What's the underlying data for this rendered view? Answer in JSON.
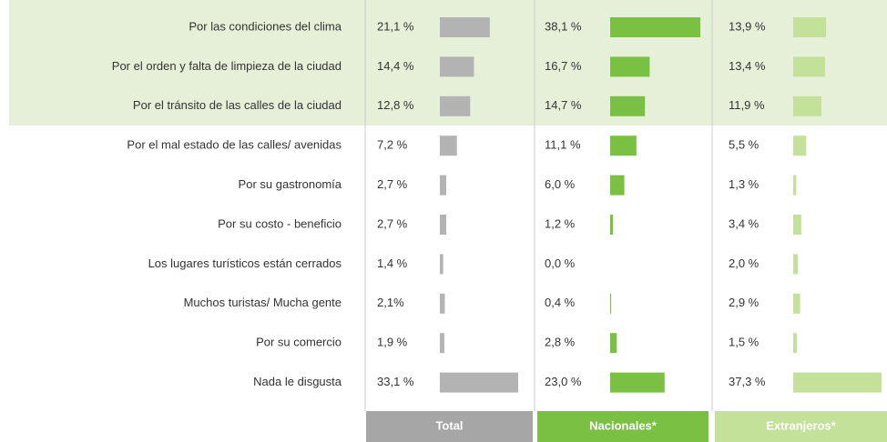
{
  "chart_data": {
    "type": "bar",
    "orientation": "horizontal",
    "categories": [
      "Por las condiciones del clima",
      "Por el orden y falta de limpieza de la ciudad",
      "Por el tránsito de las calles de la ciudad",
      "Por el mal estado de las calles/ avenidas",
      "Por su gastronomía",
      "Por su costo - beneficio",
      "Los lugares turísticos están cerrados",
      "Muchos turistas/ Mucha gente",
      "Por su comercio",
      "Nada le disgusta"
    ],
    "series": [
      {
        "name": "Total",
        "color": "#b3b3b3",
        "header_color": "#a6a6a6",
        "values": [
          21.1,
          14.4,
          12.8,
          7.2,
          2.7,
          2.7,
          1.4,
          2.1,
          1.9,
          33.1
        ],
        "value_labels": [
          "21,1 %",
          "14,4 %",
          "12,8 %",
          "7,2 %",
          "2,7 %",
          "2,7 %",
          "1,4 %",
          "2,1%",
          "1,9 %",
          "33,1 %"
        ]
      },
      {
        "name": "Nacionales*",
        "color": "#7ac143",
        "header_color": "#7ac143",
        "values": [
          38.1,
          16.7,
          14.7,
          11.1,
          6.0,
          1.2,
          0.0,
          0.4,
          2.8,
          23.0
        ],
        "value_labels": [
          "38,1 %",
          "16,7 %",
          "14,7 %",
          "11,1 %",
          "6,0 %",
          "1,2 %",
          "0,0 %",
          "0,4 %",
          "2,8 %",
          "23,0 %"
        ]
      },
      {
        "name": "Extranjeros*",
        "color": "#c3e198",
        "header_color": "#c3e198",
        "values": [
          13.9,
          13.4,
          11.9,
          5.5,
          1.3,
          3.4,
          2.0,
          2.9,
          1.5,
          37.3
        ],
        "value_labels": [
          "13,9 %",
          "13,4 %",
          "11,9 %",
          "5,5 %",
          "1,3 %",
          "3,4 %",
          "2,0 %",
          "2,9 %",
          "1,5 %",
          "37,3 %"
        ]
      }
    ]
  }
}
